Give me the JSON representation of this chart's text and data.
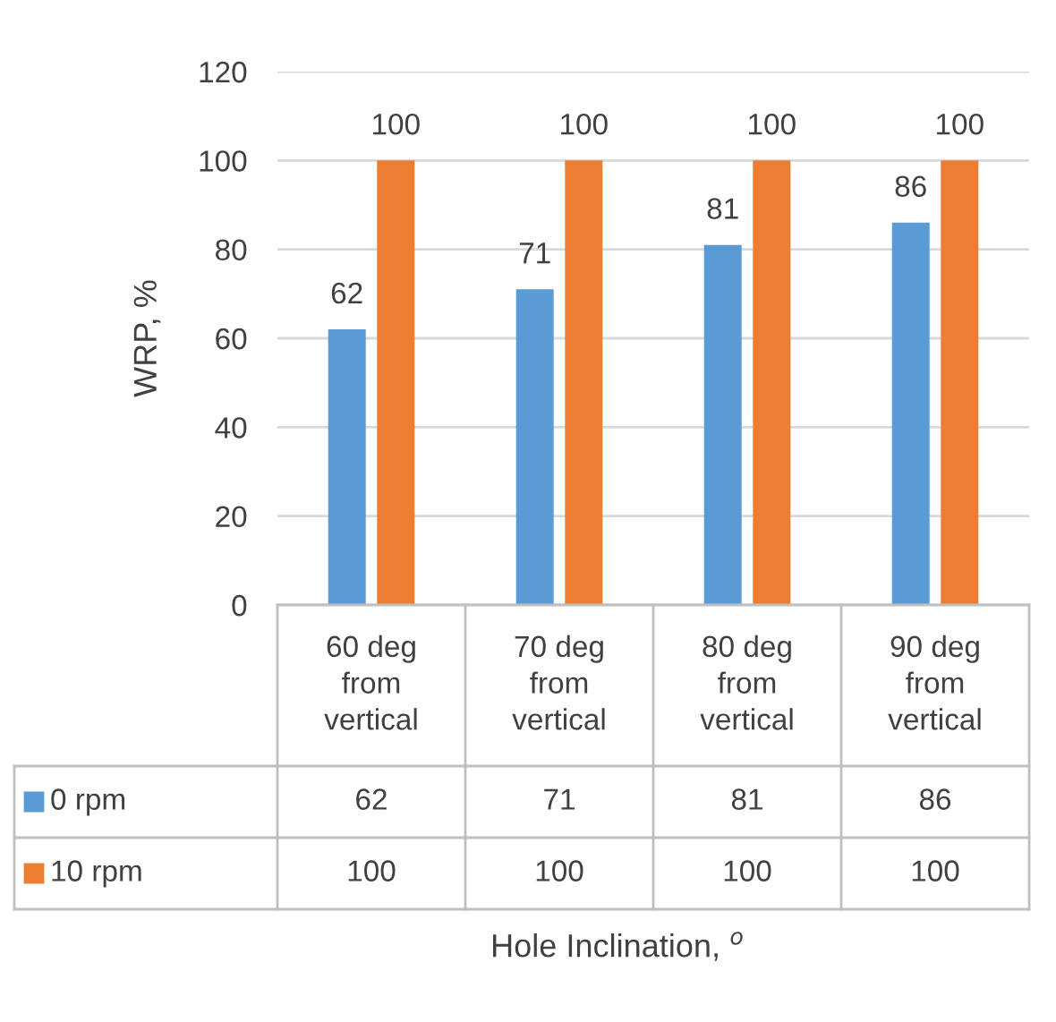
{
  "chart_data": {
    "type": "bar",
    "ylabel": "WRP, %",
    "categories": [
      "60 deg from vertical",
      "70 deg from vertical",
      "80 deg from vertical",
      "90 deg from vertical"
    ],
    "series": [
      {
        "name": "0 rpm",
        "color": "#5b9bd5",
        "values": [
          62,
          71,
          81,
          86
        ],
        "value_labels": [
          "62",
          "71",
          "81",
          "86"
        ]
      },
      {
        "name": "10 rpm",
        "color": "#ed7d31",
        "values": [
          100,
          100,
          100,
          100
        ],
        "value_labels": [
          "100",
          "100",
          "100",
          "100"
        ]
      }
    ],
    "annotations": [
      "62",
      "71",
      "81",
      "86",
      "100",
      "100",
      "100",
      "100",
      "Hole Inclination, $^{o}$"
    ],
    "ylim": [
      0,
      120
    ],
    "yticks": [
      0,
      20,
      40,
      60,
      80,
      100,
      120
    ],
    "grid": "y",
    "legend": "bottom",
    "data_labels": true
  }
}
